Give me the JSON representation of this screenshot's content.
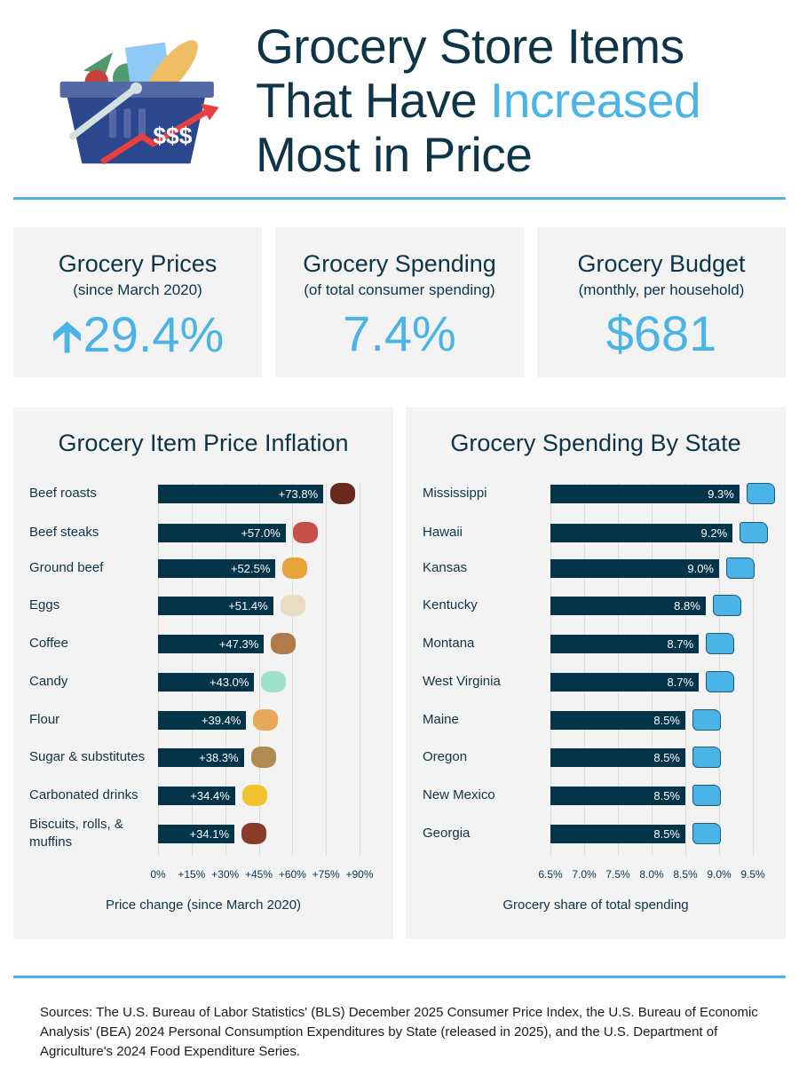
{
  "header": {
    "title_line1": "Grocery Store Items",
    "title_line2_a": "That Have ",
    "title_line2_b": "Increased",
    "title_line3": "Most in Price",
    "logo_text": "$$$"
  },
  "stats": [
    {
      "heading": "Grocery Prices",
      "sub": "(since March 2020)",
      "value": "29.4%",
      "icon": "arrow-up-icon"
    },
    {
      "heading": "Grocery Spending",
      "sub": "(of total consumer spending)",
      "value": "7.4%"
    },
    {
      "heading": "Grocery Budget",
      "sub": "(monthly, per household)",
      "value": "$681"
    }
  ],
  "colors": {
    "accent": "#4ab4e6",
    "bar": "#03344a",
    "text": "#0d3447",
    "panel": "#f3f3f3"
  },
  "chart_data": [
    {
      "type": "bar",
      "orientation": "horizontal",
      "title": "Grocery Item Price Inflation",
      "xlabel": "Price change (since March 2020)",
      "xlim": [
        0,
        90
      ],
      "ticks": [
        "0%",
        "+15%",
        "+30%",
        "+45%",
        "+60%",
        "+75%",
        "+90%"
      ],
      "tick_values": [
        0,
        15,
        30,
        45,
        60,
        75,
        90
      ],
      "grid": true,
      "categories": [
        "Beef roasts",
        "Beef steaks",
        "Ground beef",
        "Eggs",
        "Coffee",
        "Candy",
        "Flour",
        "Sugar & substitutes",
        "Carbonated drinks",
        "Biscuits, rolls, & muffins"
      ],
      "values": [
        73.8,
        57.0,
        52.5,
        51.4,
        47.3,
        43.0,
        39.4,
        38.3,
        34.4,
        34.1
      ],
      "labels": [
        "+73.8%",
        "+57.0%",
        "+52.5%",
        "+51.4%",
        "+47.3%",
        "+43.0%",
        "+39.4%",
        "+38.3%",
        "+34.4%",
        "+34.1%"
      ],
      "icons": [
        "beef-roast-icon",
        "steak-icon",
        "burger-icon",
        "eggs-icon",
        "coffee-icon",
        "candy-icon",
        "flour-icon",
        "sugar-sack-icon",
        "soda-can-icon",
        "muffin-icon"
      ]
    },
    {
      "type": "bar",
      "orientation": "horizontal",
      "title": "Grocery Spending By State",
      "xlabel": "Grocery share of total spending",
      "xlim": [
        6.5,
        9.5
      ],
      "ticks": [
        "6.5%",
        "7.0%",
        "7.5%",
        "8.0%",
        "8.5%",
        "9.0%",
        "9.5%"
      ],
      "tick_values": [
        6.5,
        7.0,
        7.5,
        8.0,
        8.5,
        9.0,
        9.5
      ],
      "grid": true,
      "categories": [
        "Mississippi",
        "Hawaii",
        "Kansas",
        "Kentucky",
        "Montana",
        "West Virginia",
        "Maine",
        "Oregon",
        "New Mexico",
        "Georgia"
      ],
      "values": [
        9.3,
        9.2,
        9.0,
        8.8,
        8.7,
        8.7,
        8.5,
        8.5,
        8.5,
        8.5
      ],
      "labels": [
        "9.3%",
        "9.2%",
        "9.0%",
        "8.8%",
        "8.7%",
        "8.7%",
        "8.5%",
        "8.5%",
        "8.5%",
        "8.5%"
      ],
      "icons": [
        "state-shape-icon"
      ]
    }
  ],
  "sources": "Sources: The U.S. Bureau of Labor Statistics' (BLS) December 2025 Consumer Price Index, the U.S. Bureau of Economic Analysis' (BEA) 2024 Personal Consumption Expenditures by State (released in 2025), and the U.S. Department of Agriculture's 2024 Food Expenditure Series."
}
